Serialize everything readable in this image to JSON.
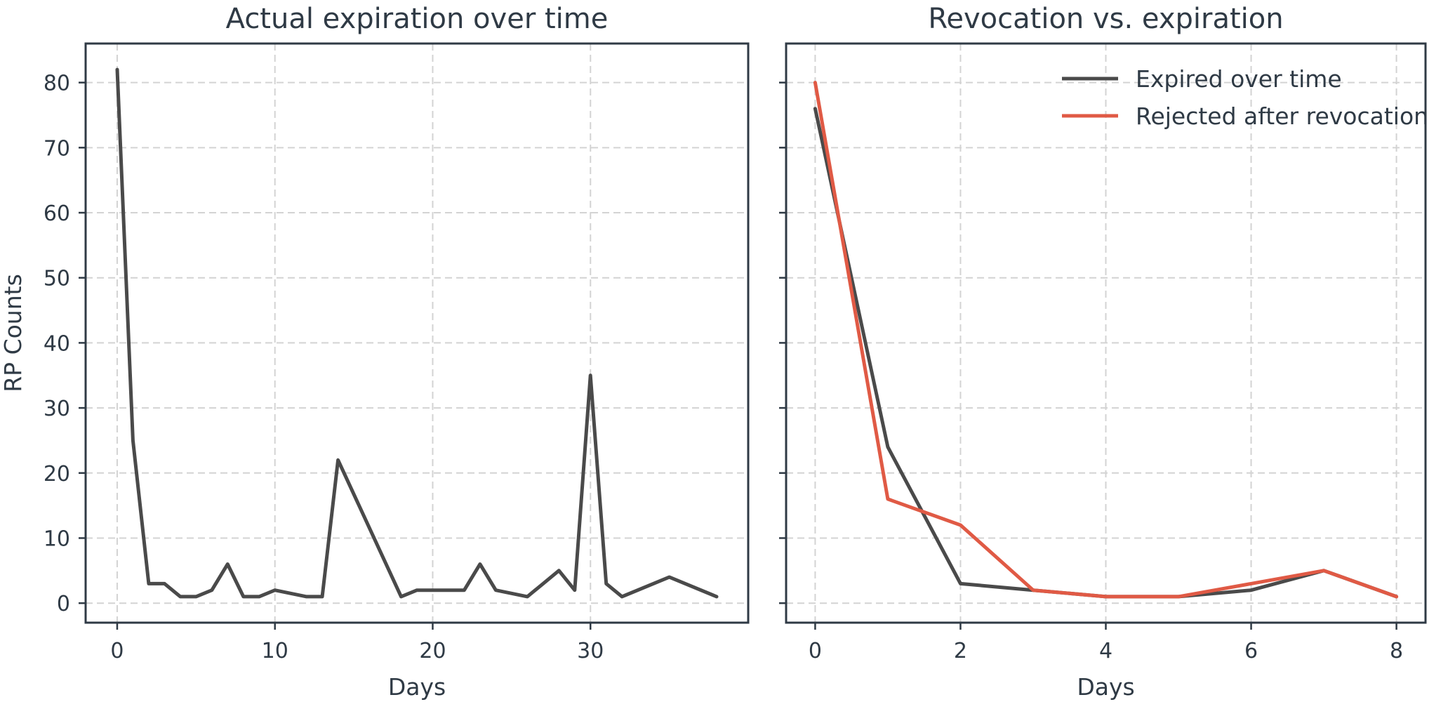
{
  "chart_data": [
    {
      "type": "line",
      "title": "Actual expiration over time",
      "xlabel": "Days",
      "ylabel": "RP Counts",
      "xlim": [
        -2,
        40
      ],
      "ylim": [
        -3,
        86
      ],
      "xticks": [
        0,
        10,
        20,
        30
      ],
      "yticks": [
        0,
        10,
        20,
        30,
        40,
        50,
        60,
        70,
        80
      ],
      "grid": true,
      "series": [
        {
          "color": "#4a4a4a",
          "x": [
            0,
            1,
            2,
            3,
            4,
            5,
            6,
            7,
            8,
            9,
            10,
            11,
            12,
            13,
            14,
            18,
            19,
            20,
            21,
            22,
            23,
            24,
            25,
            26,
            27,
            28,
            29,
            30,
            31,
            32,
            35,
            38
          ],
          "y": [
            82,
            25,
            3,
            3,
            1,
            1,
            2,
            6,
            1,
            1,
            2,
            1.5,
            1,
            1,
            22,
            1,
            2,
            2,
            2,
            2,
            6,
            2,
            1.5,
            1,
            3,
            5,
            2,
            35,
            3,
            1,
            4,
            1
          ]
        }
      ]
    },
    {
      "type": "line",
      "title": "Revocation vs. expiration",
      "xlabel": "Days",
      "ylabel": "",
      "xlim": [
        -0.4,
        8.4
      ],
      "ylim": [
        -3,
        86
      ],
      "xticks": [
        0,
        2,
        4,
        6,
        8
      ],
      "yticks": [
        0,
        10,
        20,
        30,
        40,
        50,
        60,
        70,
        80
      ],
      "grid": true,
      "legend": "top-right",
      "series": [
        {
          "name": "Expired over time",
          "color": "#4a4a4a",
          "x": [
            0,
            1,
            2,
            3,
            4,
            5,
            6,
            7,
            8
          ],
          "y": [
            76,
            24,
            3,
            2,
            1,
            1,
            2,
            5,
            1
          ]
        },
        {
          "name": "Rejected after revocation",
          "color": "#e05a45",
          "x": [
            0,
            1,
            2,
            3,
            4,
            5,
            6,
            7,
            8
          ],
          "y": [
            80,
            16,
            12,
            2,
            1,
            1,
            3,
            5,
            1
          ]
        }
      ]
    }
  ]
}
